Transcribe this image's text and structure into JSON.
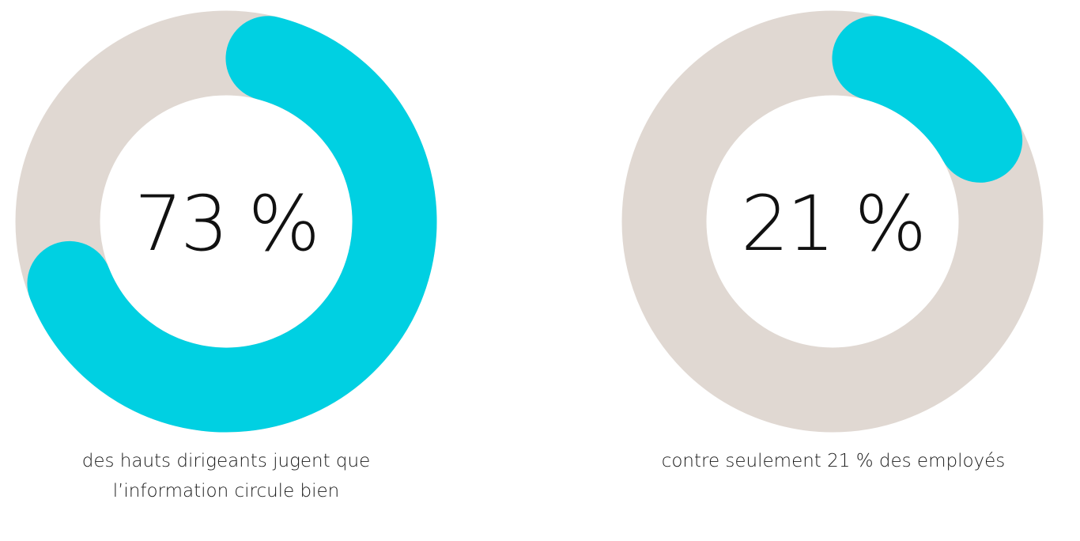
{
  "chart_data": [
    {
      "type": "pie",
      "variant": "donut",
      "value": 73,
      "center_label": "73 %",
      "caption": [
        "des hauts dirigeants jugent que",
        "l’information circule bien"
      ],
      "fill_color": "#00D0E2",
      "track_color": "#E0D8D2"
    },
    {
      "type": "pie",
      "variant": "donut",
      "value": 21,
      "center_label": "21 %",
      "caption": [
        "contre seulement 21 % des employés"
      ],
      "fill_color": "#00D0E2",
      "track_color": "#E0D8D2"
    }
  ]
}
